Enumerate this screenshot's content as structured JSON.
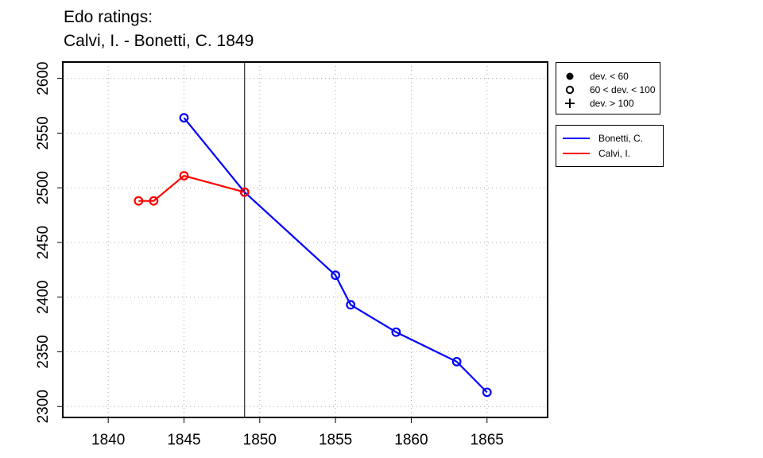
{
  "title": {
    "line1": "Edo ratings:",
    "line2": "Calvi, I. - Bonetti, C. 1849"
  },
  "legend_deviation": [
    {
      "symbol": "filled-circle-icon",
      "label": "dev. < 60"
    },
    {
      "symbol": "open-circle-icon",
      "label": "60 < dev. < 100"
    },
    {
      "symbol": "plus-icon",
      "label": "dev. > 100"
    }
  ],
  "legend_series": [
    {
      "label": "Bonetti, C.",
      "color": "#0000ff"
    },
    {
      "label": "Calvi, I.",
      "color": "#ff0000"
    }
  ],
  "chart_data": {
    "type": "line",
    "xlim": [
      1837,
      1869
    ],
    "ylim": [
      2290,
      2615
    ],
    "x_ticks": [
      1840,
      1845,
      1850,
      1855,
      1860,
      1865
    ],
    "y_ticks": [
      2300,
      2350,
      2400,
      2450,
      2500,
      2550,
      2600
    ],
    "grid": true,
    "vertical_marker_x": 1849,
    "legend_position": "outside-right",
    "series": [
      {
        "name": "Bonetti, C.",
        "color": "#0000ff",
        "marker": "open-circle",
        "points": [
          {
            "x": 1845,
            "y": 2564
          },
          {
            "x": 1849,
            "y": 2496
          },
          {
            "x": 1855,
            "y": 2420
          },
          {
            "x": 1856,
            "y": 2393
          },
          {
            "x": 1859,
            "y": 2368
          },
          {
            "x": 1863,
            "y": 2341
          },
          {
            "x": 1865,
            "y": 2313
          }
        ]
      },
      {
        "name": "Calvi, I.",
        "color": "#ff0000",
        "marker": "open-circle",
        "points": [
          {
            "x": 1842,
            "y": 2488
          },
          {
            "x": 1843,
            "y": 2488
          },
          {
            "x": 1845,
            "y": 2511
          },
          {
            "x": 1849,
            "y": 2496
          }
        ]
      }
    ]
  }
}
